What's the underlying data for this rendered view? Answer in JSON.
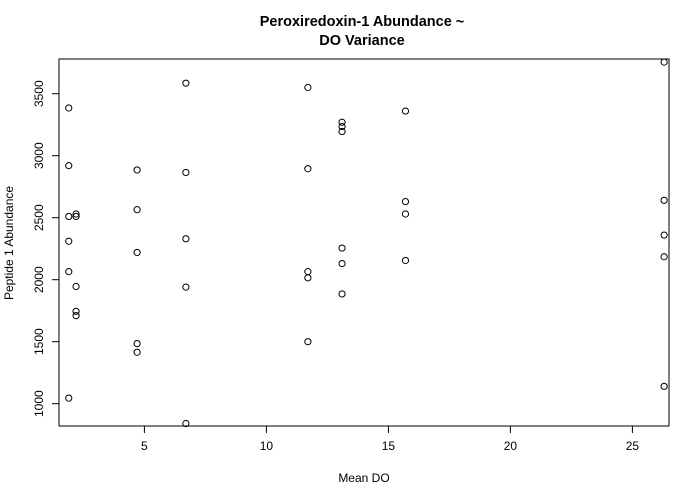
{
  "chart_data": {
    "type": "scatter",
    "title": [
      "Peroxiredoxin-1 Abundance ~",
      "DO Variance"
    ],
    "xlabel": "Mean DO",
    "ylabel": "Peptide 1 Abundance",
    "xlim": [
      1.5,
      26.5
    ],
    "ylim": [
      820,
      3780
    ],
    "xticks": [
      5,
      10,
      15,
      20,
      25
    ],
    "yticks": [
      1000,
      1500,
      2000,
      2500,
      3000,
      3500
    ],
    "grid": false,
    "legend": "none",
    "marker": "open-circle",
    "points": [
      {
        "x": 1.9,
        "y": 3385
      },
      {
        "x": 1.9,
        "y": 2920
      },
      {
        "x": 1.9,
        "y": 2510
      },
      {
        "x": 1.9,
        "y": 2310
      },
      {
        "x": 1.9,
        "y": 2065
      },
      {
        "x": 1.9,
        "y": 1045
      },
      {
        "x": 2.2,
        "y": 2530
      },
      {
        "x": 2.2,
        "y": 2510
      },
      {
        "x": 2.2,
        "y": 1945
      },
      {
        "x": 2.2,
        "y": 1745
      },
      {
        "x": 2.2,
        "y": 1710
      },
      {
        "x": 4.7,
        "y": 2885
      },
      {
        "x": 4.7,
        "y": 2565
      },
      {
        "x": 4.7,
        "y": 2220
      },
      {
        "x": 4.7,
        "y": 1485
      },
      {
        "x": 4.7,
        "y": 1415
      },
      {
        "x": 6.7,
        "y": 3585
      },
      {
        "x": 6.7,
        "y": 2865
      },
      {
        "x": 6.7,
        "y": 2330
      },
      {
        "x": 6.7,
        "y": 1940
      },
      {
        "x": 6.7,
        "y": 840
      },
      {
        "x": 11.7,
        "y": 3550
      },
      {
        "x": 11.7,
        "y": 2895
      },
      {
        "x": 11.7,
        "y": 2065
      },
      {
        "x": 11.7,
        "y": 2015
      },
      {
        "x": 11.7,
        "y": 1500
      },
      {
        "x": 13.1,
        "y": 3270
      },
      {
        "x": 13.1,
        "y": 3235
      },
      {
        "x": 13.1,
        "y": 3195
      },
      {
        "x": 13.1,
        "y": 2255
      },
      {
        "x": 13.1,
        "y": 2130
      },
      {
        "x": 13.1,
        "y": 1885
      },
      {
        "x": 15.7,
        "y": 3360
      },
      {
        "x": 15.7,
        "y": 2630
      },
      {
        "x": 15.7,
        "y": 2530
      },
      {
        "x": 15.7,
        "y": 2155
      },
      {
        "x": 26.3,
        "y": 3755
      },
      {
        "x": 26.3,
        "y": 2640
      },
      {
        "x": 26.3,
        "y": 2360
      },
      {
        "x": 26.3,
        "y": 2185
      },
      {
        "x": 26.3,
        "y": 1140
      }
    ]
  }
}
